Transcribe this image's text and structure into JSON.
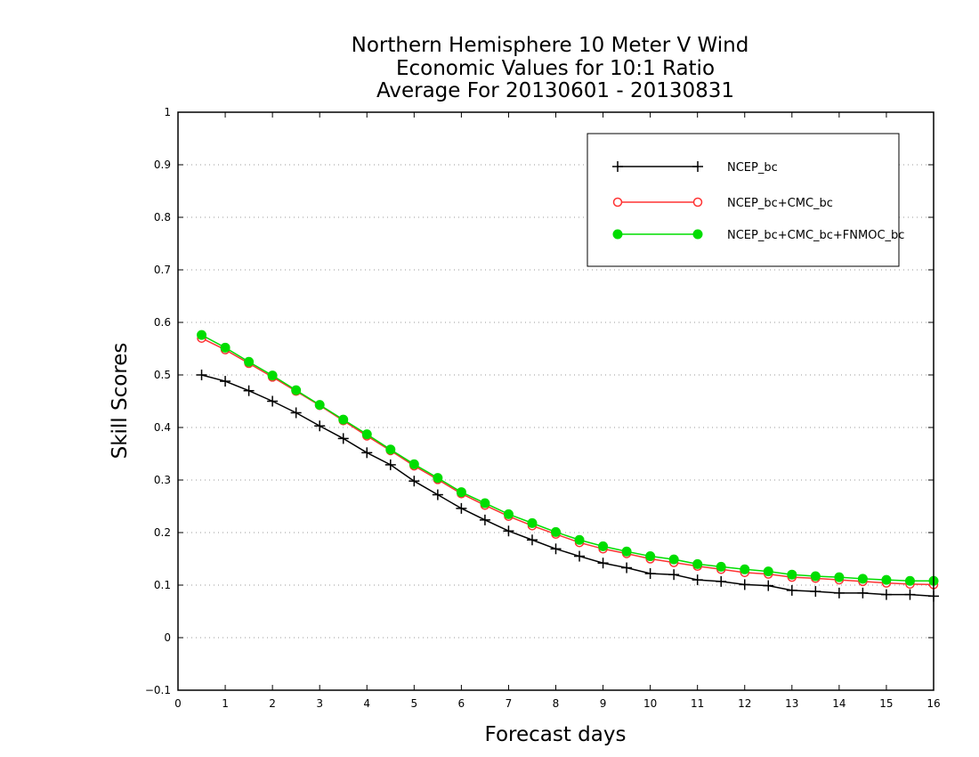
{
  "chart_data": {
    "type": "line",
    "title_lines": [
      "Northern Hemisphere 10 Meter V Wind",
      "Economic Values for 10:1 Ratio",
      "Average For 20130601 - 20130831"
    ],
    "xlabel": "Forecast days",
    "ylabel": "Skill Scores",
    "xlim": [
      0,
      16
    ],
    "ylim": [
      -0.1,
      1
    ],
    "xticks": [
      "0",
      "1",
      "2",
      "3",
      "4",
      "5",
      "6",
      "7",
      "8",
      "9",
      "10",
      "11",
      "12",
      "13",
      "14",
      "15",
      "16"
    ],
    "yticks": [
      "−0.1",
      "0",
      "0.1",
      "0.2",
      "0.3",
      "0.4",
      "0.5",
      "0.6",
      "0.7",
      "0.8",
      "0.9",
      "1"
    ],
    "grid": "horizontal dotted",
    "legend_position": "top-right",
    "x": [
      0.5,
      1,
      1.5,
      2,
      2.5,
      3,
      3.5,
      4,
      4.5,
      5,
      5.5,
      6,
      6.5,
      7,
      7.5,
      8,
      8.5,
      9,
      9.5,
      10,
      10.5,
      11,
      11.5,
      12,
      12.5,
      13,
      13.5,
      14,
      14.5,
      15,
      15.5,
      16
    ],
    "series": [
      {
        "name": "NCEP_bc",
        "color": "#000000",
        "marker": "plus",
        "values": [
          0.5,
          0.488,
          0.47,
          0.45,
          0.428,
          0.403,
          0.379,
          0.352,
          0.329,
          0.298,
          0.272,
          0.246,
          0.224,
          0.203,
          0.186,
          0.169,
          0.155,
          0.142,
          0.133,
          0.122,
          0.12,
          0.11,
          0.107,
          0.101,
          0.099,
          0.09,
          0.088,
          0.085,
          0.085,
          0.082,
          0.082,
          0.079
        ]
      },
      {
        "name": "NCEP_bc+CMC_bc",
        "color": "#ff3333",
        "marker": "open-circle",
        "values": [
          0.57,
          0.548,
          0.522,
          0.496,
          0.469,
          0.442,
          0.413,
          0.384,
          0.356,
          0.327,
          0.301,
          0.274,
          0.252,
          0.231,
          0.213,
          0.197,
          0.181,
          0.169,
          0.16,
          0.15,
          0.143,
          0.136,
          0.13,
          0.124,
          0.121,
          0.115,
          0.113,
          0.11,
          0.107,
          0.104,
          0.102,
          0.101
        ]
      },
      {
        "name": "NCEP_bc+CMC_bc+FNMOC_bc",
        "color": "#00dd00",
        "marker": "filled-circle",
        "values": [
          0.576,
          0.552,
          0.525,
          0.499,
          0.471,
          0.443,
          0.415,
          0.387,
          0.358,
          0.33,
          0.304,
          0.277,
          0.256,
          0.235,
          0.218,
          0.201,
          0.186,
          0.174,
          0.164,
          0.155,
          0.149,
          0.14,
          0.135,
          0.13,
          0.126,
          0.12,
          0.117,
          0.115,
          0.112,
          0.11,
          0.108,
          0.108
        ]
      }
    ]
  }
}
